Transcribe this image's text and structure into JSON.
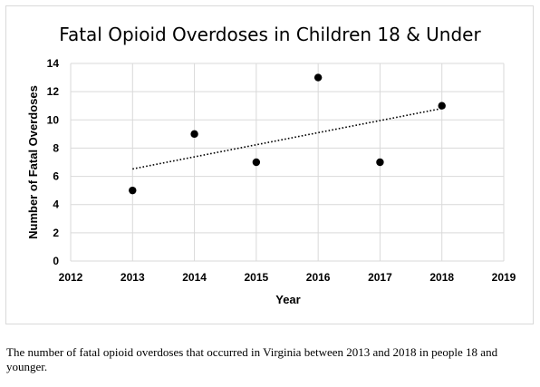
{
  "chart_data": {
    "type": "scatter",
    "title": "Fatal Opioid Overdoses in Children 18 & Under",
    "xlabel": "Year",
    "ylabel": "Number of Fatal Overdoses",
    "x": [
      2013,
      2014,
      2015,
      2016,
      2017,
      2018
    ],
    "y": [
      5,
      9,
      7,
      13,
      7,
      11
    ],
    "xlim": [
      2012,
      2019
    ],
    "ylim": [
      0,
      14
    ],
    "xticks": [
      2012,
      2013,
      2014,
      2015,
      2016,
      2017,
      2018,
      2019
    ],
    "yticks": [
      0,
      2,
      4,
      6,
      8,
      10,
      12,
      14
    ],
    "grid": true,
    "trendline": "linear",
    "legend": "none",
    "point_color": "#000000",
    "grid_color": "#d9d9d9"
  },
  "caption": "The number of fatal opioid overdoses that occurred in Virginia between 2013 and 2018 in people 18 and younger."
}
